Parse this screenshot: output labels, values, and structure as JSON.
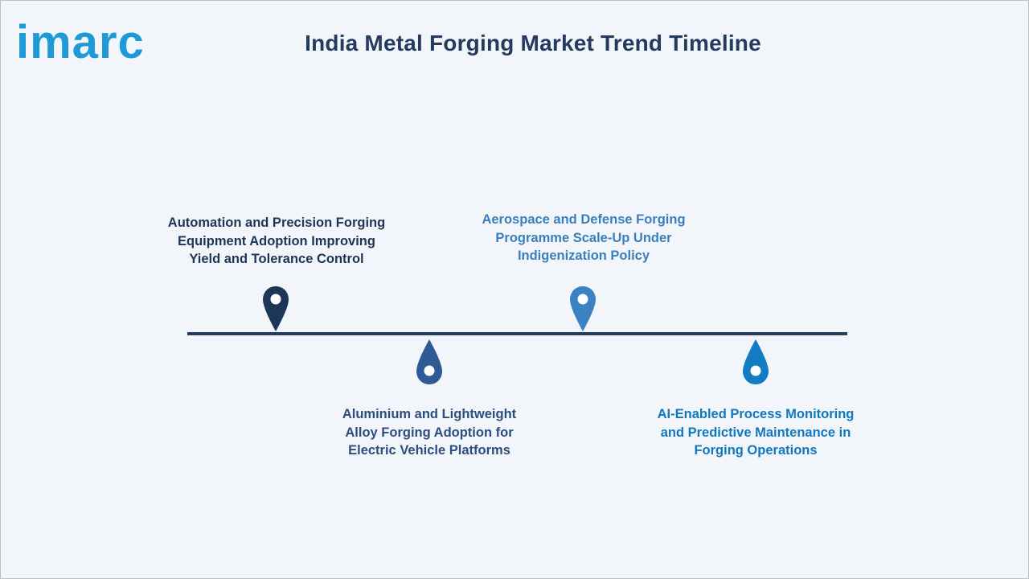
{
  "brand": {
    "name": "imarc",
    "color": "#1e9ad6"
  },
  "title": "India Metal Forging Market Trend Timeline",
  "colors": {
    "background": "#f2f5fa",
    "axis": "#223d5e",
    "pin1": "#1d3557",
    "pin2": "#2f5a96",
    "pin3": "#3a82c2",
    "pin4": "#137cc4"
  },
  "events": [
    {
      "lines": [
        "Automation and Precision Forging",
        "Equipment Adoption Improving",
        "Yield and Tolerance Control"
      ],
      "color": "#1d3557",
      "position": "above"
    },
    {
      "lines": [
        "Aluminium and Lightweight",
        "Alloy Forging Adoption for",
        "Electric Vehicle Platforms"
      ],
      "color": "#2c4d80",
      "position": "below"
    },
    {
      "lines": [
        "Aerospace and Defense Forging",
        "Programme Scale-Up Under",
        "Indigenization Policy"
      ],
      "color": "#3a7fbd",
      "position": "above"
    },
    {
      "lines": [
        "AI-Enabled Process Monitoring",
        "and Predictive Maintenance in",
        "Forging Operations"
      ],
      "color": "#1178bf",
      "position": "below"
    }
  ]
}
